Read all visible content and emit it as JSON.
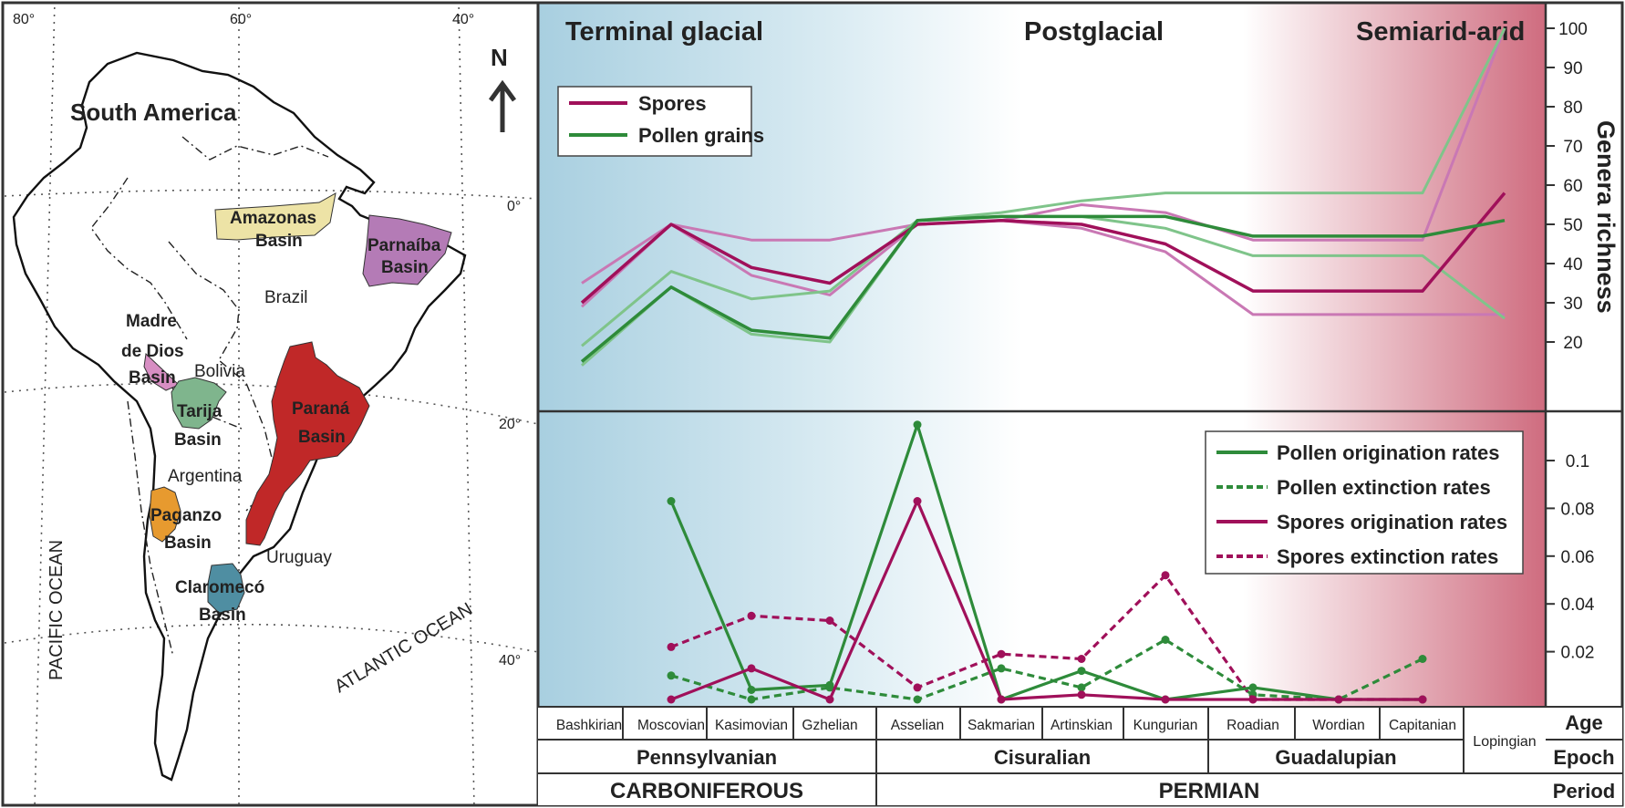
{
  "colors": {
    "spores": "#a0105a",
    "spores_light": "#c978b4",
    "pollen": "#2e8b3a",
    "pollen_light": "#7fc48a",
    "glacial_bg": "#a8cfe0",
    "arid_bg": "#cf6c7f",
    "amazonas": "#ede3a6",
    "parnaiba": "#b47bb6",
    "madre_de_dios": "#d78ec3",
    "tarija": "#7fb58d",
    "parana": "#c02828",
    "paganzo": "#e79a2f",
    "claromeco": "#4f8ea2"
  },
  "map": {
    "lon_labels": [
      "80°",
      "60°",
      "40°"
    ],
    "lat_labels": [
      "0°",
      "20°",
      "40°"
    ],
    "continent_label": "South America",
    "north_label": "N",
    "pacific_label": "PACIFIC OCEAN",
    "atlantic_label": "ATLANTIC OCEAN",
    "countries": [
      "Brazil",
      "Bolivia",
      "Argentina",
      "Uruguay"
    ],
    "basins": [
      {
        "id": "amazonas",
        "line1": "Amazonas",
        "line2": "Basin",
        "line3": ""
      },
      {
        "id": "parnaiba",
        "line1": "Parnaíba",
        "line2": "Basin",
        "line3": ""
      },
      {
        "id": "madre_de_dios",
        "line1": "Madre",
        "line2": "de Dios",
        "line3": "Basin"
      },
      {
        "id": "tarija",
        "line1": "Tarija",
        "line2": "Basin",
        "line3": ""
      },
      {
        "id": "parana",
        "line1": "Paraná",
        "line2": "Basin",
        "line3": ""
      },
      {
        "id": "paganzo",
        "line1": "Paganzo",
        "line2": "Basin",
        "line3": ""
      },
      {
        "id": "claromeco",
        "line1": "Claromecó",
        "line2": "Basin",
        "line3": ""
      }
    ]
  },
  "chart": {
    "phases": [
      "Terminal glacial",
      "Postglacial",
      "Semiarid-arid"
    ],
    "ylabel_top": "Genera richness",
    "top_ticks": [
      "100",
      "90",
      "80",
      "70",
      "60",
      "50",
      "40",
      "30",
      "20"
    ],
    "bottom_ticks": [
      "0.1",
      "0.08",
      "0.06",
      "0.04",
      "0.02"
    ],
    "legend_top": [
      "Spores",
      "Pollen grains"
    ],
    "legend_bottom": [
      "Pollen origination rates",
      "Pollen extinction rates",
      "Spores origination rates",
      "Spores extinction rates"
    ],
    "ages": [
      "Bashkirian",
      "Moscovian",
      "Kasimovian",
      "Gzhelian",
      "Asselian",
      "Sakmarian",
      "Artinskian",
      "Kungurian",
      "Roadian",
      "Wordian",
      "Capitanian",
      "Lopingian"
    ],
    "epochs": [
      "Pennsylvanian",
      "Cisuralian",
      "Guadalupian",
      "Lopingian"
    ],
    "periods": [
      "CARBONIFEROUS",
      "PERMIAN"
    ],
    "row_labels": [
      "Age",
      "Epoch",
      "Period"
    ]
  },
  "chart_data": [
    {
      "type": "line",
      "title": "",
      "ylabel": "Genera richness",
      "ylim": [
        10,
        100
      ],
      "x": [
        "Bashkirian",
        "Moscovian",
        "Kasimovian",
        "Gzhelian",
        "Asselian",
        "Sakmarian",
        "Artinskian",
        "Kungurian",
        "Roadian",
        "Wordian",
        "Capitanian",
        "Lopingian"
      ],
      "series": [
        {
          "name": "Spores",
          "values": [
            30,
            50,
            39,
            35,
            50,
            51,
            50,
            45,
            33,
            33,
            33,
            58
          ]
        },
        {
          "name": "",
          "values": [
            35,
            50,
            46,
            46,
            50,
            51,
            55,
            53,
            46,
            46,
            46,
            100
          ]
        },
        {
          "name": "",
          "values": [
            29,
            50,
            37,
            32,
            50,
            51,
            49,
            43,
            27,
            27,
            27,
            27
          ]
        },
        {
          "name": "Pollen grains",
          "values": [
            15,
            34,
            23,
            21,
            51,
            52,
            52,
            52,
            47,
            47,
            47,
            51
          ]
        },
        {
          "name": "",
          "values": [
            19,
            38,
            31,
            33,
            51,
            53,
            56,
            58,
            58,
            58,
            58,
            100
          ]
        },
        {
          "name": "",
          "values": [
            14,
            34,
            22,
            20,
            51,
            52,
            52,
            49,
            42,
            42,
            42,
            26
          ]
        }
      ]
    },
    {
      "type": "line",
      "title": "",
      "ylim": [
        -0.002,
        0.116
      ],
      "x": [
        "Moscovian",
        "Kasimovian",
        "Gzhelian",
        "Asselian",
        "Sakmarian",
        "Artinskian",
        "Kungurian",
        "Roadian",
        "Wordian",
        "Capitanian"
      ],
      "series": [
        {
          "name": "Pollen origination rates",
          "values": [
            0.083,
            0.004,
            0.006,
            0.115,
            0.0,
            0.012,
            0.0,
            0.005,
            0.0,
            0.0
          ]
        },
        {
          "name": "Pollen extinction rates",
          "values": [
            0.01,
            0.0,
            0.005,
            0.0,
            0.013,
            0.005,
            0.025,
            0.002,
            0.0,
            0.017
          ]
        },
        {
          "name": "Spores origination rates",
          "values": [
            0.0,
            0.013,
            0.0,
            0.083,
            0.0,
            0.002,
            0.0,
            0.0,
            0.0,
            0.0
          ]
        },
        {
          "name": "Spores extinction rates",
          "values": [
            0.022,
            0.035,
            0.033,
            0.005,
            0.019,
            0.017,
            0.052,
            0.0,
            0.0,
            0.0
          ]
        }
      ]
    }
  ]
}
